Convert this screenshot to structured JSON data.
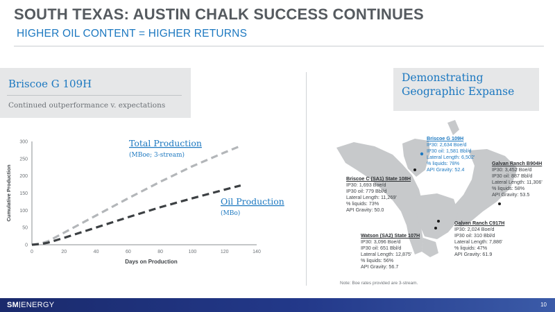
{
  "header": {
    "title": "SOUTH TEXAS: AUSTIN CHALK SUCCESS CONTINUES",
    "subtitle": "HIGHER OIL CONTENT = HIGHER RETURNS"
  },
  "left_panel": {
    "title": "Briscoe G 109H",
    "description": "Continued outperformance v. expectations"
  },
  "right_panel": {
    "title_line1": "Demonstrating",
    "title_line2": "Geographic Expanse"
  },
  "chart_data": {
    "type": "line",
    "ylabel": "Cumulative Production",
    "xlabel": "Days on Production",
    "xlim": [
      0,
      140
    ],
    "ylim": [
      0,
      300
    ],
    "x_ticks": [
      "0",
      "20",
      "40",
      "60",
      "80",
      "100",
      "120",
      "140"
    ],
    "y_ticks": [
      "0",
      "50",
      "100",
      "150",
      "200",
      "250",
      "300"
    ],
    "series": [
      {
        "name": "Total Production",
        "unit_label": "(MBoe; 3-stream)",
        "color": "#b3b6b9",
        "x": [
          0,
          5,
          10,
          20,
          40,
          60,
          80,
          100,
          120,
          130
        ],
        "y": [
          0,
          3,
          10,
          35,
          85,
          135,
          183,
          228,
          268,
          287
        ]
      },
      {
        "name": "Oil Production",
        "unit_label": "(MBo)",
        "color": "#3c4043",
        "x": [
          0,
          5,
          10,
          20,
          40,
          60,
          80,
          100,
          120,
          130
        ],
        "y": [
          0,
          2,
          6,
          20,
          50,
          80,
          109,
          135,
          160,
          172
        ]
      }
    ]
  },
  "map": {
    "wells": [
      {
        "name": "Briscoe G 109H",
        "lines": [
          "IP30: 2,634 Boe/d",
          "IP30 oil: 1,581 Bbl/d",
          "Lateral Length: 6,502'",
          "% liquids: 78%",
          "API Gravity: 52.4"
        ],
        "highlight": true
      },
      {
        "name": "Galvan Ranch B904H",
        "lines": [
          "IP30: 3,452 Boe/d",
          "IP30 oil: 887 Bbl/d",
          "Lateral Length: 11,306'",
          "% liquids: 58%",
          "API Gravity: 53.5"
        ],
        "highlight": false
      },
      {
        "name": "Briscoe C (SA1) State 108H",
        "lines": [
          "IP30: 1,693 Boe/d",
          "IP30 oil: 779 Bbl/d",
          "Lateral Length: 11,269'",
          "% liquids: 73%",
          "API Gravity: 50.0"
        ],
        "highlight": false
      },
      {
        "name": "Galvan Ranch C917H",
        "lines": [
          "IP30: 2,024 Boe/d",
          "IP30 oil: 310 Bbl/d",
          "Lateral Length: 7,886'",
          "% liquids: 47%",
          "API Gravity: 61.9"
        ],
        "highlight": false
      },
      {
        "name": "Watson (SA2) State 107H",
        "lines": [
          "IP30: 3,096 Boe/d",
          "IP30 oil: 651 Bbl/d",
          "Lateral Length: 12,875'",
          "% liquids: 56%",
          "API Gravity: 56.7"
        ],
        "highlight": false
      }
    ],
    "note": "Note: Boe rates provided are 3-stream."
  },
  "footer": {
    "logo_left": "SM",
    "logo_right": "ENERGY",
    "page_number": "10"
  }
}
